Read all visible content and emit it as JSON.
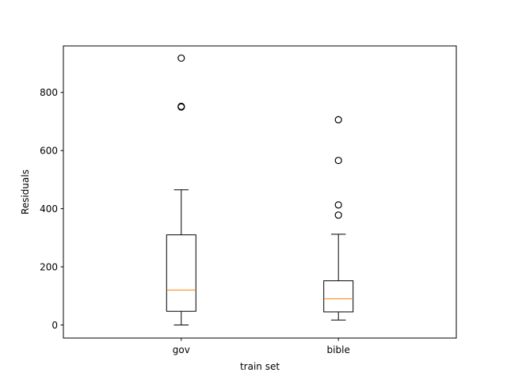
{
  "chart_data": {
    "type": "boxplot",
    "title": "",
    "xlabel": "train set",
    "ylabel": "Residuals",
    "ylim": [
      -45,
      960
    ],
    "yticks": [
      0,
      200,
      400,
      600,
      800
    ],
    "grid": false,
    "categories": [
      "gov",
      "bible"
    ],
    "boxes": [
      {
        "name": "gov",
        "whisker_low": 0,
        "q1": 47,
        "median": 120,
        "q3": 310,
        "whisker_high": 465,
        "outliers": [
          750,
          752,
          918
        ]
      },
      {
        "name": "bible",
        "whisker_low": 17,
        "q1": 45,
        "median": 90,
        "q3": 152,
        "whisker_high": 312,
        "outliers": [
          378,
          413,
          566,
          706
        ]
      }
    ],
    "colors": {
      "box": "#000000",
      "median": "#ff7f0e",
      "outlier": "#000000",
      "background": "#ffffff"
    }
  }
}
